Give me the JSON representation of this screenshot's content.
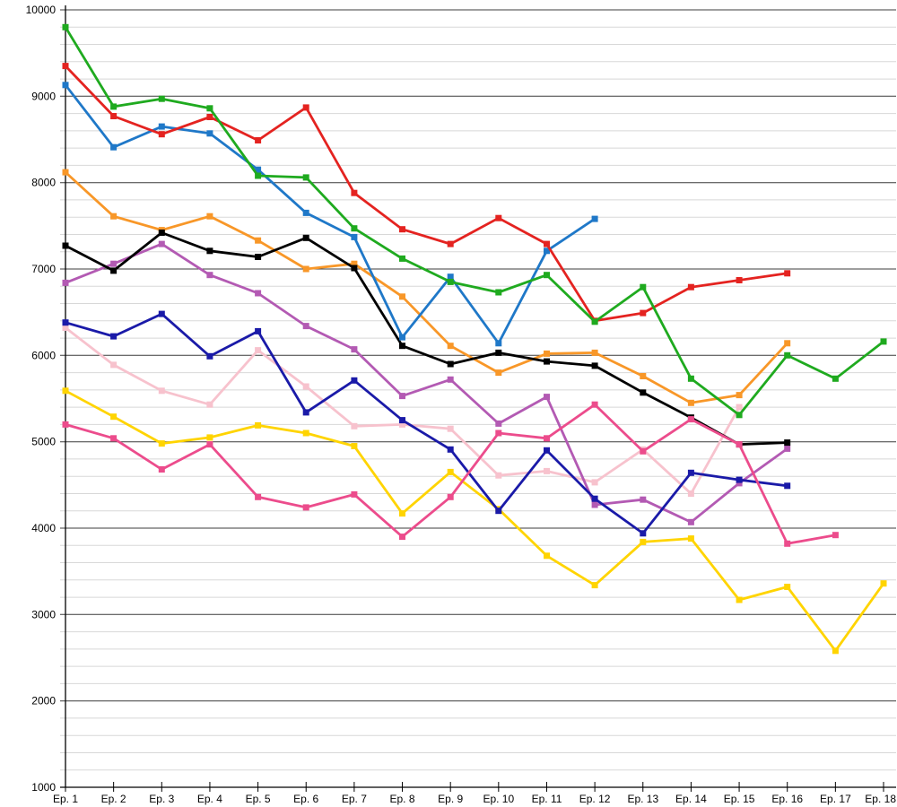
{
  "chart_data": {
    "type": "line",
    "title": "",
    "xlabel": "",
    "ylabel": "",
    "categories": [
      "Ep. 1",
      "Ep. 2",
      "Ep. 3",
      "Ep. 4",
      "Ep. 5",
      "Ep. 6",
      "Ep. 7",
      "Ep. 8",
      "Ep. 9",
      "Ep. 10",
      "Ep. 11",
      "Ep. 12",
      "Ep. 13",
      "Ep. 14",
      "Ep. 15",
      "Ep. 16",
      "Ep. 17",
      "Ep. 18"
    ],
    "y_axis": {
      "min": 1000,
      "max": 10000,
      "major_step": 1000,
      "minor_step": 200,
      "tick_labels": [
        "1000",
        "2000",
        "3000",
        "4000",
        "5000",
        "6000",
        "7000",
        "8000",
        "9000",
        "10000"
      ]
    },
    "grid": {
      "major_color": "#3c3c3c",
      "minor_color": "#d8d8d8",
      "axis_color": "#000000"
    },
    "legend_position": "none",
    "marker_shape": "square",
    "series": [
      {
        "name": "pink-series",
        "color": "#f7c2cd",
        "values": [
          6320,
          5890,
          5590,
          5430,
          6060,
          5640,
          5180,
          5200,
          5150,
          4610,
          4660,
          4530,
          4910,
          4400,
          5400,
          null,
          null,
          null
        ]
      },
      {
        "name": "yellow-series",
        "color": "#ffd400",
        "values": [
          5590,
          5290,
          4980,
          5050,
          5190,
          5100,
          4950,
          4170,
          4650,
          4220,
          3680,
          3340,
          3840,
          3880,
          3170,
          3320,
          2580,
          3360
        ]
      },
      {
        "name": "orange-series",
        "color": "#f89728",
        "values": [
          8120,
          7610,
          7450,
          7610,
          7330,
          7000,
          7060,
          6680,
          6110,
          5800,
          6020,
          6030,
          5760,
          5450,
          5540,
          6140,
          null,
          null
        ]
      },
      {
        "name": "purple-series",
        "color": "#b35ab3",
        "values": [
          6840,
          7060,
          7290,
          6930,
          6720,
          6340,
          6070,
          5530,
          5720,
          5210,
          5520,
          4270,
          4330,
          4070,
          4520,
          4920,
          null,
          null
        ]
      },
      {
        "name": "navy-series",
        "color": "#1a1aa8",
        "values": [
          6380,
          6220,
          6480,
          5990,
          6280,
          5340,
          5710,
          5250,
          4910,
          4200,
          4900,
          4340,
          3940,
          4640,
          4560,
          4490,
          null,
          null
        ]
      },
      {
        "name": "black-series",
        "color": "#000000",
        "values": [
          7270,
          6980,
          7420,
          7210,
          7140,
          7360,
          7010,
          6110,
          5900,
          6030,
          5930,
          5880,
          5570,
          5280,
          4970,
          4990,
          null,
          null
        ]
      },
      {
        "name": "magenta-series",
        "color": "#ec4c8c",
        "values": [
          5200,
          5040,
          4680,
          4970,
          4360,
          4240,
          4390,
          3900,
          4360,
          5100,
          5040,
          5430,
          4890,
          5260,
          4970,
          3820,
          3920,
          null
        ]
      },
      {
        "name": "blue-series",
        "color": "#1f78c8",
        "values": [
          9130,
          8410,
          8650,
          8570,
          8150,
          7650,
          7370,
          6210,
          6910,
          6140,
          7210,
          7580,
          null,
          null,
          null,
          null,
          null,
          null
        ]
      },
      {
        "name": "red-series",
        "color": "#e42320",
        "values": [
          9350,
          8770,
          8560,
          8760,
          8490,
          8870,
          7880,
          7460,
          7290,
          7590,
          7290,
          6400,
          6490,
          6790,
          6870,
          6950,
          null,
          null
        ]
      },
      {
        "name": "green-series",
        "color": "#1faa1f",
        "values": [
          9800,
          8880,
          8970,
          8860,
          8080,
          8060,
          7470,
          7120,
          6850,
          6730,
          6930,
          6390,
          6790,
          5730,
          5310,
          6000,
          5730,
          6160
        ]
      }
    ]
  }
}
